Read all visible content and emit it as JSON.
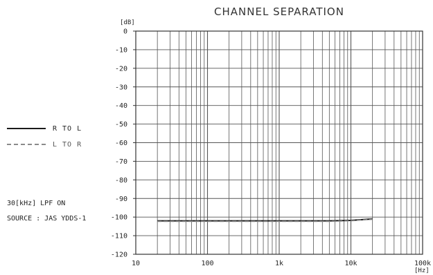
{
  "chart_data": {
    "type": "line",
    "title": "CHANNEL SEPARATION",
    "y_unit_label": "[dB]",
    "x_unit_label": "[Hz]",
    "x_scale": "log",
    "xlim": [
      10,
      100000
    ],
    "ylim": [
      -120,
      0
    ],
    "y_ticks": [
      0,
      -10,
      -20,
      -30,
      -40,
      -50,
      -60,
      -70,
      -80,
      -90,
      -100,
      -110,
      -120
    ],
    "y_tick_labels": [
      "0",
      "-10",
      "-20",
      "-30",
      "-40",
      "-50",
      "-60",
      "-70",
      "-80",
      "-90",
      "-100",
      "-110",
      "-120"
    ],
    "x_ticks": [
      10,
      100,
      1000,
      10000,
      100000
    ],
    "x_tick_labels": [
      "10",
      "100",
      "1k",
      "10k",
      "100k"
    ],
    "grid": true,
    "legend": {
      "position": "left",
      "entries": [
        {
          "label": "R TO L",
          "color": "#1a1a1a",
          "style": "solid"
        },
        {
          "label": "L TO R",
          "color": "#8a8a8a",
          "style": "dashed"
        }
      ]
    },
    "annotations": [
      "30[kHz] LPF ON",
      "SOURCE : JAS YDDS-1"
    ],
    "series": [
      {
        "name": "R TO L",
        "color": "#1a1a1a",
        "points": [
          [
            20,
            -102
          ],
          [
            100,
            -102
          ],
          [
            1000,
            -102
          ],
          [
            5000,
            -102
          ],
          [
            10000,
            -101.8
          ],
          [
            15000,
            -101.3
          ],
          [
            20000,
            -101
          ]
        ]
      },
      {
        "name": "L TO R",
        "color": "#8a8a8a",
        "points": [
          [
            20,
            -102.3
          ],
          [
            100,
            -102.3
          ],
          [
            1000,
            -102.3
          ],
          [
            5000,
            -102.3
          ],
          [
            10000,
            -102
          ],
          [
            15000,
            -101.5
          ],
          [
            20000,
            -101.2
          ]
        ]
      }
    ]
  }
}
